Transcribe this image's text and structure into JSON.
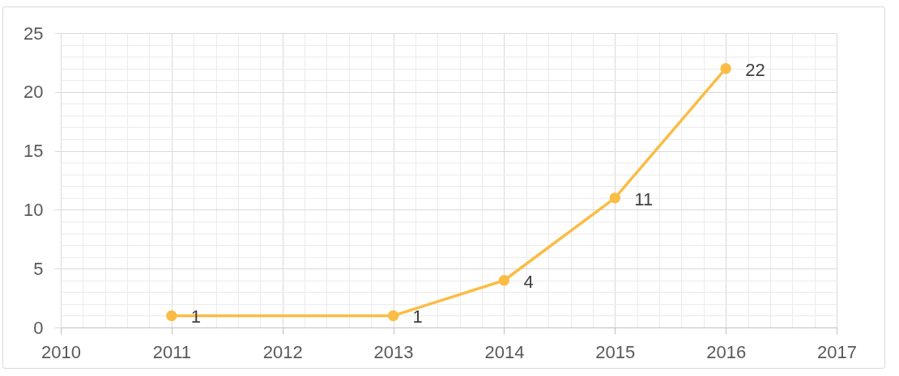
{
  "chart_data": {
    "type": "line",
    "x": [
      2011,
      2013,
      2014,
      2015,
      2016
    ],
    "values": [
      1,
      1,
      4,
      11,
      22
    ],
    "color": "#fbbc45",
    "xlim": [
      2010,
      2017
    ],
    "xticks": [
      2010,
      {
        "value": 2010.2,
        "label": null
      },
      {
        "value": 2010.4,
        "label": null
      },
      {
        "value": 2010.6,
        "label": null
      },
      {
        "value": 2010.8,
        "label": null
      },
      2011,
      {
        "value": 2011.2,
        "label": null
      },
      {
        "value": 2011.4,
        "label": null
      },
      {
        "value": 2011.6,
        "label": null
      },
      {
        "value": 2011.8,
        "label": null
      },
      2012,
      {
        "value": 2012.2,
        "label": null
      },
      {
        "value": 2012.4,
        "label": null
      },
      {
        "value": 2012.6,
        "label": null
      },
      {
        "value": 2012.8,
        "label": null
      },
      2013,
      {
        "value": 2013.2,
        "label": null
      },
      {
        "value": 2013.4,
        "label": null
      },
      {
        "value": 2013.6,
        "label": null
      },
      {
        "value": 2013.8,
        "label": null
      },
      2014,
      {
        "value": 2014.2,
        "label": null
      },
      {
        "value": 2014.4,
        "label": null
      },
      {
        "value": 2014.6,
        "label": null
      },
      {
        "value": 2014.8,
        "label": null
      },
      2015,
      {
        "value": 2015.2,
        "label": null
      },
      {
        "value": 2015.4,
        "label": null
      },
      {
        "value": 2015.6,
        "label": null
      },
      {
        "value": 2015.8,
        "label": null
      },
      2016,
      {
        "value": 2016.2,
        "label": null
      },
      {
        "value": 2016.4,
        "label": null
      },
      {
        "value": 2016.6,
        "label": null
      },
      {
        "value": 2016.8,
        "label": null
      },
      2017
    ],
    "ylim": [
      0,
      25
    ],
    "yticks": [
      0,
      {
        "value": 1,
        "label": null
      },
      {
        "value": 2,
        "label": null
      },
      {
        "value": 3,
        "label": null
      },
      {
        "value": 4,
        "label": null
      },
      5,
      {
        "value": 6,
        "label": null
      },
      {
        "value": 7,
        "label": null
      },
      {
        "value": 8,
        "label": null
      },
      {
        "value": 9,
        "label": null
      },
      10,
      {
        "value": 11,
        "label": null
      },
      {
        "value": 12,
        "label": null
      },
      {
        "value": 13,
        "label": null
      },
      {
        "value": 14,
        "label": null
      },
      15,
      {
        "value": 16,
        "label": null
      },
      {
        "value": 17,
        "label": null
      },
      {
        "value": 18,
        "label": null
      },
      {
        "value": 19,
        "label": null
      },
      20,
      {
        "value": 21,
        "label": null
      },
      {
        "value": 22,
        "label": null
      },
      {
        "value": 23,
        "label": null
      },
      {
        "value": 24,
        "label": null
      },
      25
    ],
    "grid": true,
    "marker": "circle",
    "data_labels": true
  }
}
